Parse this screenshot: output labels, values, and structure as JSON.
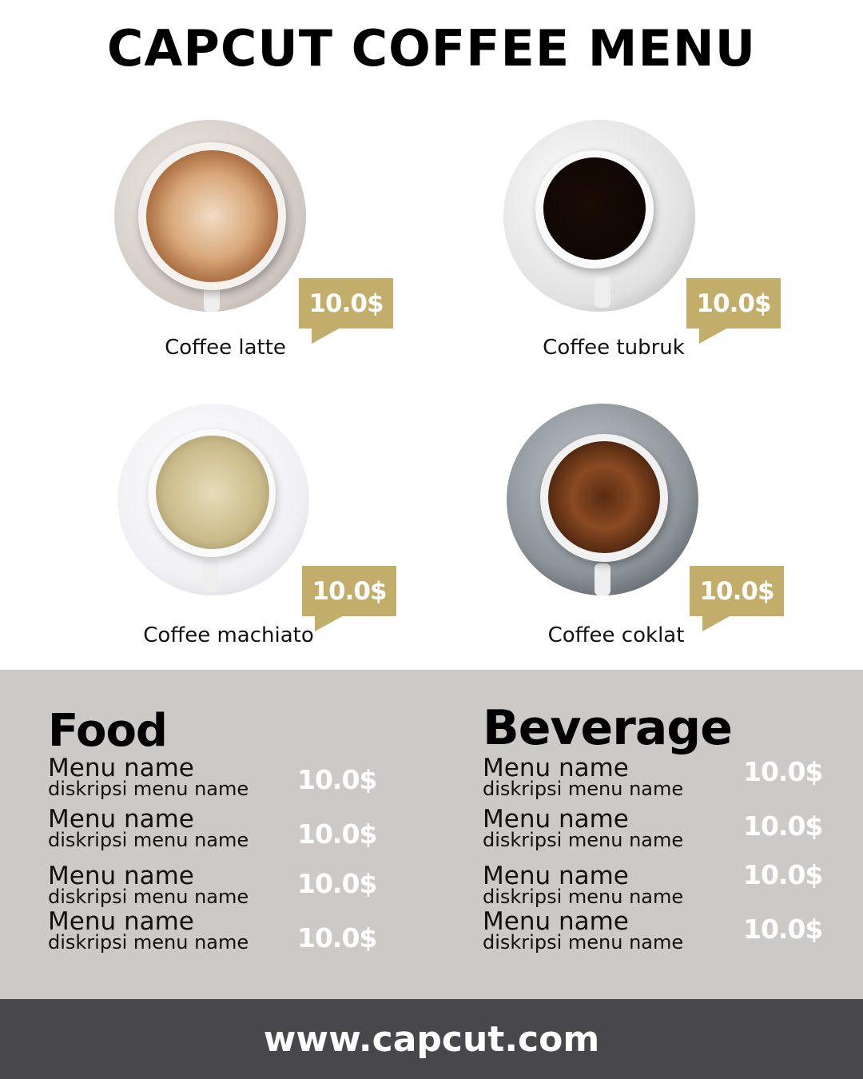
{
  "title": "CAPCUT COFFEE MENU",
  "colors": {
    "gold": "#c2ad6b",
    "menu_bg": "#cdc9c6",
    "footer_bg": "#48474b"
  },
  "featured": [
    {
      "name": "Coffee latte",
      "price": "10.0$"
    },
    {
      "name": "Coffee tubruk",
      "price": "10.0$"
    },
    {
      "name": "Coffee machiato",
      "price": "10.0$"
    },
    {
      "name": "Coffee coklat",
      "price": "10.0$"
    }
  ],
  "food": {
    "title": "Food",
    "items": [
      {
        "name": "Menu name",
        "desc": "diskripsi menu name",
        "price": "10.0$"
      },
      {
        "name": "Menu name",
        "desc": "diskripsi menu name",
        "price": "10.0$"
      },
      {
        "name": "Menu name",
        "desc": "diskripsi menu name",
        "price": "10.0$"
      },
      {
        "name": "Menu name",
        "desc": "diskripsi menu name",
        "price": "10.0$"
      }
    ]
  },
  "beverage": {
    "title": "Beverage",
    "items": [
      {
        "name": "Menu name",
        "desc": "diskripsi menu name",
        "price": "10.0$"
      },
      {
        "name": "Menu name",
        "desc": "diskripsi menu name",
        "price": "10.0$"
      },
      {
        "name": "Menu name",
        "desc": "diskripsi menu name",
        "price": "10.0$"
      },
      {
        "name": "Menu name",
        "desc": "diskripsi menu name",
        "price": "10.0$"
      }
    ]
  },
  "footer": {
    "url": "www.capcut.com"
  }
}
